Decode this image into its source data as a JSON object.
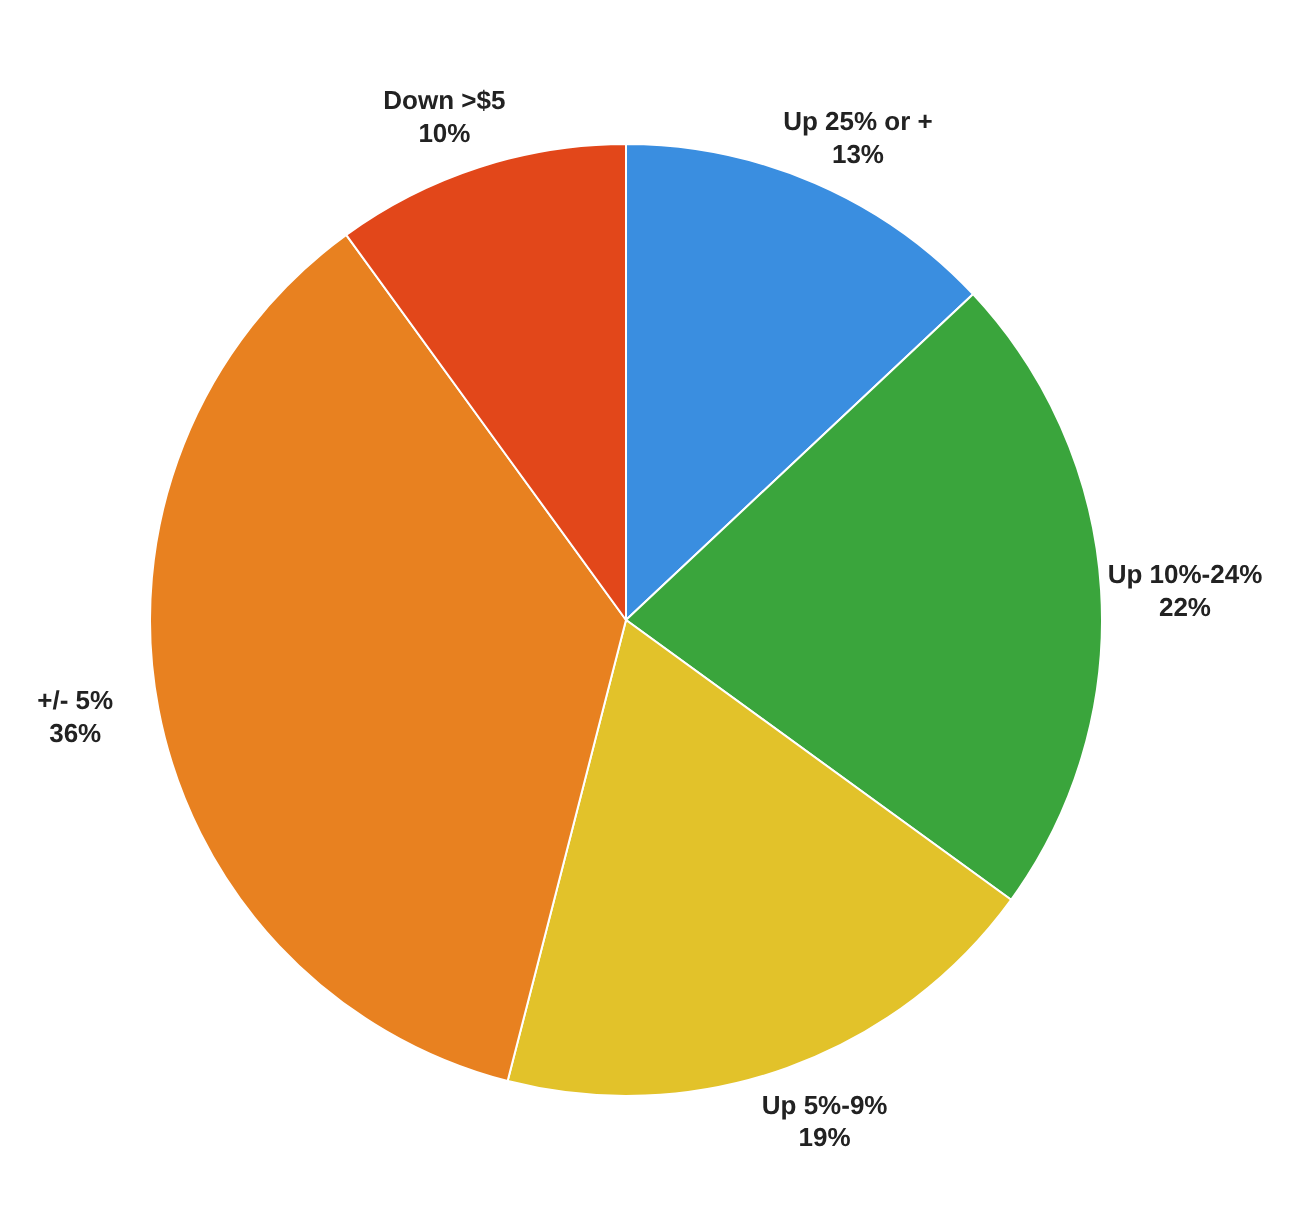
{
  "chart_data": {
    "type": "pie",
    "categories": [
      "Up 25% or +",
      "Up 10%-24%",
      "Up 5%-9%",
      "+/- 5%",
      "Down >$5"
    ],
    "values": [
      13,
      22,
      19,
      36,
      10
    ],
    "value_labels": [
      "13%",
      "22%",
      "19%",
      "36%",
      "10%"
    ],
    "colors": [
      "#3a8ee0",
      "#3aa53c",
      "#e2c22a",
      "#e88120",
      "#e2471a"
    ],
    "legend": false
  }
}
